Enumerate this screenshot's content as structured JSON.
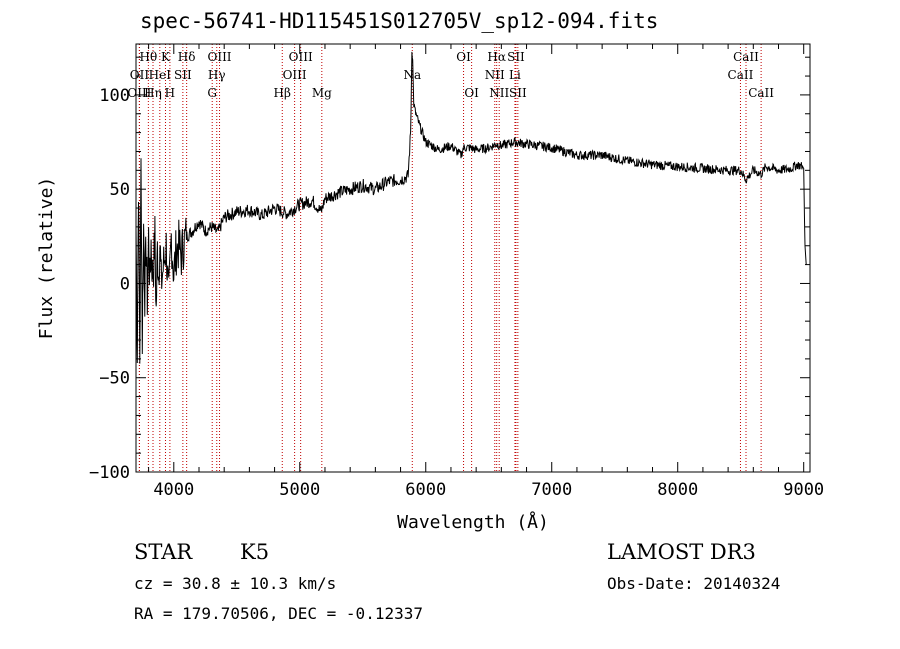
{
  "title": "spec-56741-HD115451S012705V_sp12-094.fits",
  "info": {
    "class_label": "STAR",
    "subclass": "K5",
    "survey": "LAMOST DR3",
    "cz": "cz = 30.8 ± 10.3 km/s",
    "obs_date": "Obs-Date: 20140324",
    "coords": "RA = 179.70506, DEC =  -0.12337"
  },
  "chart_data": {
    "type": "line",
    "title": "spec-56741-HD115451S012705V_sp12-094.fits",
    "xlabel": "Wavelength (Å)",
    "ylabel": "Flux (relative)",
    "xlim": [
      3700,
      9050
    ],
    "ylim": [
      -100,
      127
    ],
    "xticks": [
      4000,
      5000,
      6000,
      7000,
      8000,
      9000
    ],
    "xtick_labels": [
      "4000",
      "5000",
      "6000",
      "7000",
      "8000",
      "9000"
    ],
    "yticks": [
      -100,
      -50,
      0,
      50,
      100
    ],
    "ytick_labels": [
      "−100",
      "−50",
      "0",
      "50",
      "100"
    ],
    "series": [
      {
        "name": "flux",
        "x": [
          3700,
          3710,
          3720,
          3730,
          3740,
          3750,
          3760,
          3770,
          3780,
          3790,
          3800,
          3810,
          3820,
          3830,
          3840,
          3850,
          3860,
          3870,
          3880,
          3890,
          3900,
          3920,
          3940,
          3960,
          3980,
          4000,
          4020,
          4040,
          4060,
          4080,
          4100,
          4150,
          4200,
          4250,
          4300,
          4350,
          4400,
          4500,
          4600,
          4700,
          4800,
          4860,
          4900,
          5000,
          5100,
          5170,
          5200,
          5300,
          5400,
          5500,
          5600,
          5700,
          5800,
          5860,
          5880,
          5890,
          5896,
          5905,
          5920,
          5950,
          6000,
          6050,
          6100,
          6200,
          6280,
          6300,
          6350,
          6400,
          6500,
          6563,
          6600,
          6700,
          6800,
          7000,
          7200,
          7400,
          7600,
          7800,
          8000,
          8200,
          8400,
          8500,
          8542,
          8600,
          8662,
          8700,
          8800,
          8900,
          8950,
          8990,
          9000,
          9010,
          9020
        ],
        "y": [
          30,
          -35,
          55,
          -40,
          62,
          -30,
          30,
          -5,
          20,
          -8,
          25,
          0,
          22,
          5,
          10,
          25,
          -15,
          18,
          5,
          22,
          0,
          10,
          20,
          -10,
          25,
          5,
          18,
          20,
          15,
          22,
          25,
          28,
          33,
          28,
          30,
          27,
          35,
          38,
          39,
          36,
          40,
          38,
          37,
          42,
          44,
          38,
          45,
          48,
          50,
          52,
          50,
          54,
          55,
          57,
          80,
          125,
          118,
          95,
          90,
          84,
          75,
          73,
          71,
          73,
          68,
          72,
          72,
          71,
          72,
          74,
          73,
          75,
          74,
          72,
          68,
          68,
          65,
          63,
          62,
          61,
          60,
          60,
          55,
          60,
          58,
          62,
          60,
          61,
          63,
          62,
          61,
          20,
          10
        ]
      }
    ],
    "lines": [
      {
        "label": "Hθ",
        "wave": 3798,
        "row": 0
      },
      {
        "label": "OII",
        "wave": 3727,
        "row": 1
      },
      {
        "label": "OIII",
        "wave": 3727,
        "row": 2
      },
      {
        "label": "K",
        "wave": 3934,
        "row": 0
      },
      {
        "label": "HeI",
        "wave": 3889,
        "row": 1
      },
      {
        "label": "Hη",
        "wave": 3835,
        "row": 2
      },
      {
        "label": "Hδ",
        "wave": 4102,
        "row": 0
      },
      {
        "label": "SII",
        "wave": 4072,
        "row": 1
      },
      {
        "label": "H",
        "wave": 3969,
        "row": 2
      },
      {
        "label": "OIII",
        "wave": 4363,
        "row": 0
      },
      {
        "label": "Hγ",
        "wave": 4341,
        "row": 1
      },
      {
        "label": "G",
        "wave": 4305,
        "row": 2
      },
      {
        "label": "OIII",
        "wave": 5007,
        "row": 0
      },
      {
        "label": "OIII",
        "wave": 4959,
        "row": 1
      },
      {
        "label": "Hβ",
        "wave": 4861,
        "row": 2
      },
      {
        "label": "Mg",
        "wave": 5175,
        "row": 2
      },
      {
        "label": "Na",
        "wave": 5893,
        "row": 1
      },
      {
        "label": "OI",
        "wave": 6300,
        "row": 0
      },
      {
        "label": "OI",
        "wave": 6364,
        "row": 2
      },
      {
        "label": "Hα",
        "wave": 6563,
        "row": 0
      },
      {
        "label": "SII",
        "wave": 6716,
        "row": 0
      },
      {
        "label": "NII",
        "wave": 6548,
        "row": 1
      },
      {
        "label": "Li",
        "wave": 6708,
        "row": 1
      },
      {
        "label": "NII",
        "wave": 6583,
        "row": 2
      },
      {
        "label": "SII",
        "wave": 6731,
        "row": 2
      },
      {
        "label": "CaII",
        "wave": 8542,
        "row": 0
      },
      {
        "label": "CaII",
        "wave": 8498,
        "row": 1
      },
      {
        "label": "CaII",
        "wave": 8662,
        "row": 2
      }
    ]
  }
}
